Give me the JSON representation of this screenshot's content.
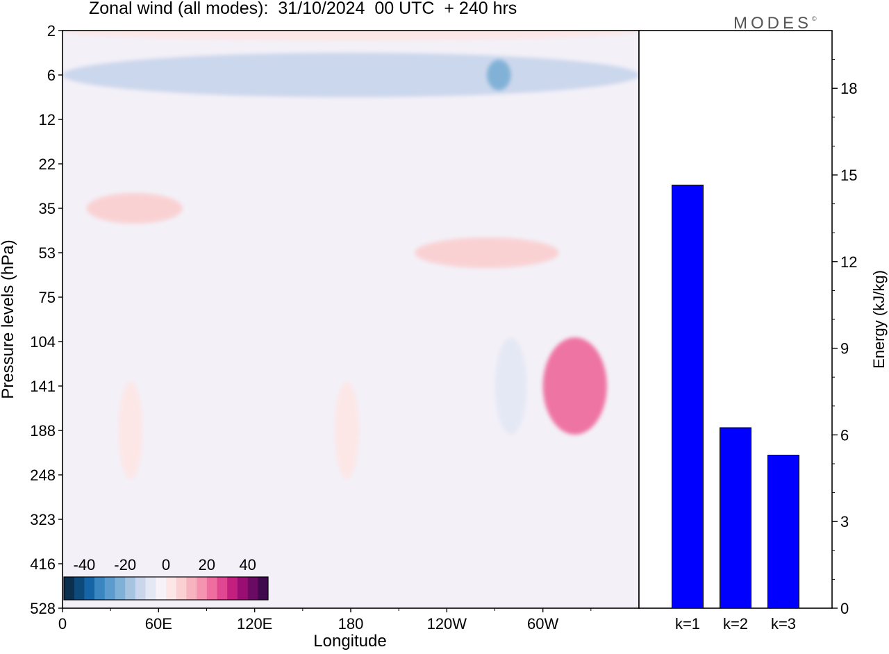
{
  "title": "Zonal wind (all modes):  31/10/2024  00 UTC  + 240 hrs",
  "logo": "MODES",
  "logo_mark": "©",
  "chart_data": [
    {
      "type": "heatmap",
      "xlabel": "Longitude",
      "ylabel": "Pressure levels (hPa)",
      "x_ticks": [
        "0",
        "60E",
        "120E",
        "180",
        "120W",
        "60W"
      ],
      "x_range_deg": [
        0,
        360
      ],
      "y_ticks": [
        "2",
        "6",
        "12",
        "22",
        "35",
        "53",
        "75",
        "104",
        "141",
        "188",
        "248",
        "323",
        "416",
        "528"
      ],
      "colorbar": {
        "tick_labels": [
          "-40",
          "-20",
          "0",
          "20",
          "40"
        ],
        "levels": [
          -45,
          -40,
          -35,
          -30,
          -25,
          -20,
          -15,
          -10,
          -5,
          5,
          10,
          15,
          20,
          25,
          30,
          35,
          40,
          45
        ],
        "colors": [
          "#0b2f4f",
          "#0d4a7a",
          "#1565a6",
          "#3a86c0",
          "#5c9bcd",
          "#7fb0d6",
          "#a6c3e0",
          "#c9d6ec",
          "#e4e8f4",
          "#f6f2f8",
          "#fde6e6",
          "#fad0d2",
          "#f7b4c0",
          "#f494b0",
          "#ee6ea0",
          "#e04790",
          "#c21f7f",
          "#9a0d73",
          "#6b0a63",
          "#3f0a4e"
        ]
      },
      "features": [
        {
          "lon": [
            0,
            360
          ],
          "level": "2",
          "value": 5,
          "label": "weak easterly-pink band at top"
        },
        {
          "lon": [
            0,
            360
          ],
          "level": "6",
          "value": -15,
          "label": "easterly jet core"
        },
        {
          "lon": [
            265,
            280
          ],
          "level": "6",
          "value": -25
        },
        {
          "lon": [
            15,
            75
          ],
          "level": "35",
          "value": 12
        },
        {
          "lon": [
            220,
            310
          ],
          "level": "53",
          "value": 12
        },
        {
          "lon": [
            300,
            340
          ],
          "level": "141",
          "value": 25
        },
        {
          "lon": [
            270,
            290
          ],
          "level": "141",
          "value": -10
        },
        {
          "lon": [
            35,
            50
          ],
          "level": "188",
          "value": 8
        },
        {
          "lon": [
            170,
            185
          ],
          "level": "188",
          "value": 8
        }
      ]
    },
    {
      "type": "bar",
      "categories": [
        "k=1",
        "k=2",
        "k=3"
      ],
      "values": [
        14.65,
        6.25,
        5.3
      ],
      "ylabel": "Energy (kJ/kg)",
      "ylim": [
        0,
        20
      ],
      "y_ticks": [
        0,
        3,
        6,
        9,
        12,
        15,
        18
      ],
      "bar_color": "#0000ff"
    }
  ]
}
